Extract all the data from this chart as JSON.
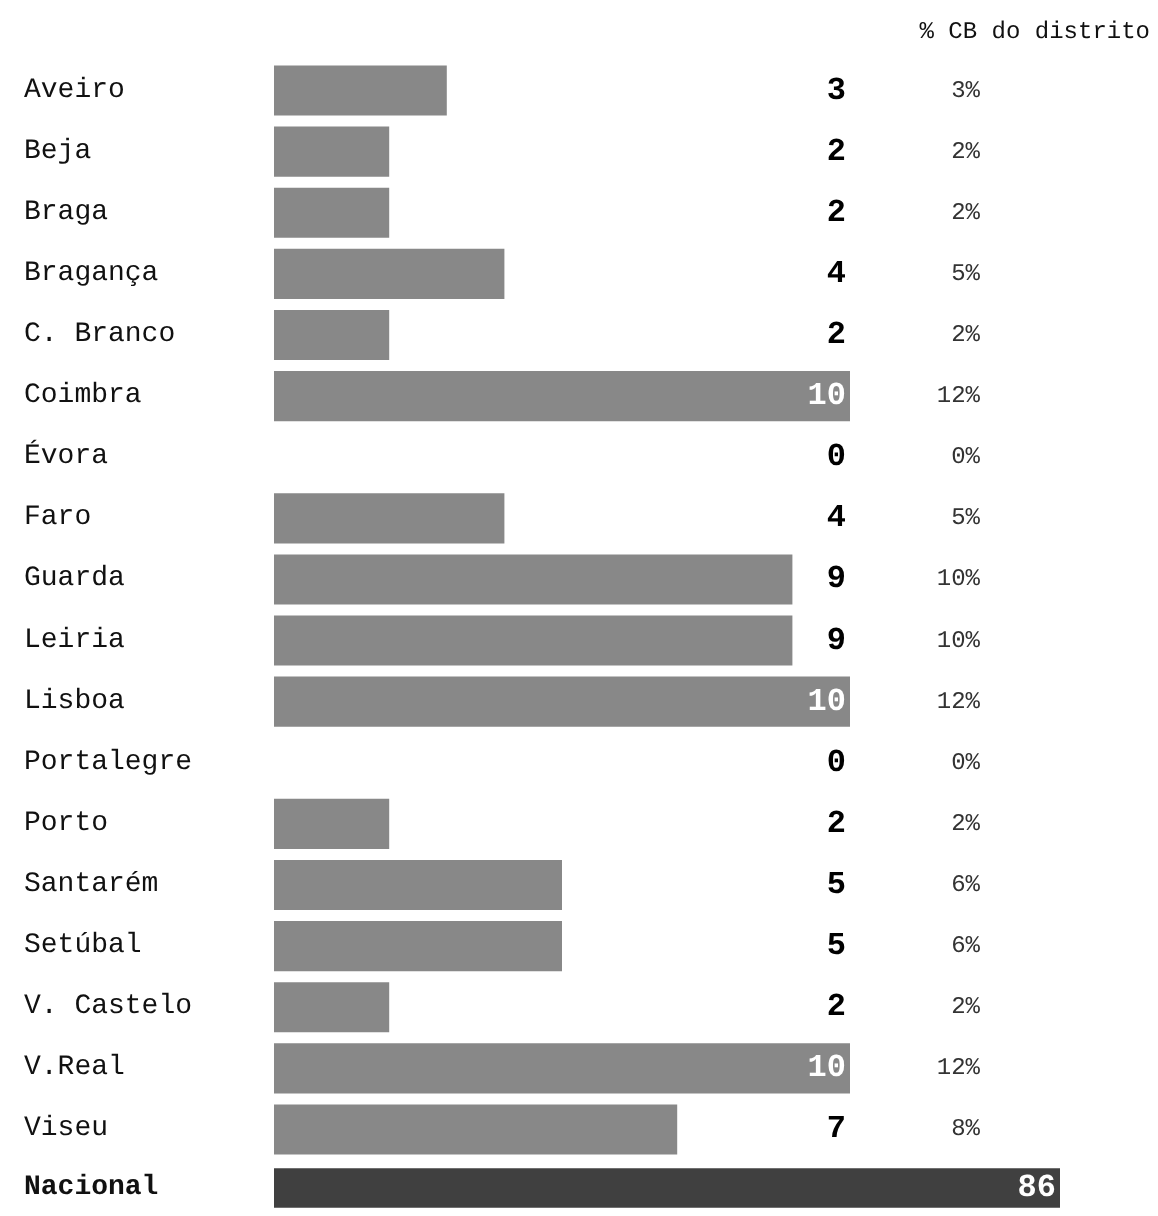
{
  "chart_data": [
    {
      "type": "bar",
      "orientation": "horizontal",
      "data_labels": true,
      "color": "#888888",
      "categories": [
        "Aveiro",
        "Beja",
        "Braga",
        "Bragança",
        "C. Branco",
        "Coimbra",
        "Évora",
        "Faro",
        "Guarda",
        "Leiria",
        "Lisboa",
        "Portalegre",
        "Porto",
        "Santarém",
        "Setúbal",
        "V. Castelo",
        "V.Real",
        "Viseu"
      ],
      "values": [
        3,
        2,
        2,
        4,
        2,
        10,
        0,
        4,
        9,
        9,
        10,
        0,
        2,
        5,
        5,
        2,
        10,
        7
      ],
      "annotations": [
        "% CB do distrito",
        "3%",
        "2%",
        "2%",
        "5%",
        "2%",
        "12%",
        "0%",
        "5%",
        "10%",
        "10%",
        "12%",
        "0%",
        "2%",
        "6%",
        "6%",
        "2%",
        "12%",
        "8%"
      ]
    },
    {
      "type": "bar",
      "orientation": "horizontal",
      "data_labels": true,
      "color": "#404040",
      "categories": [
        "Nacional"
      ],
      "values": [
        86
      ]
    }
  ]
}
